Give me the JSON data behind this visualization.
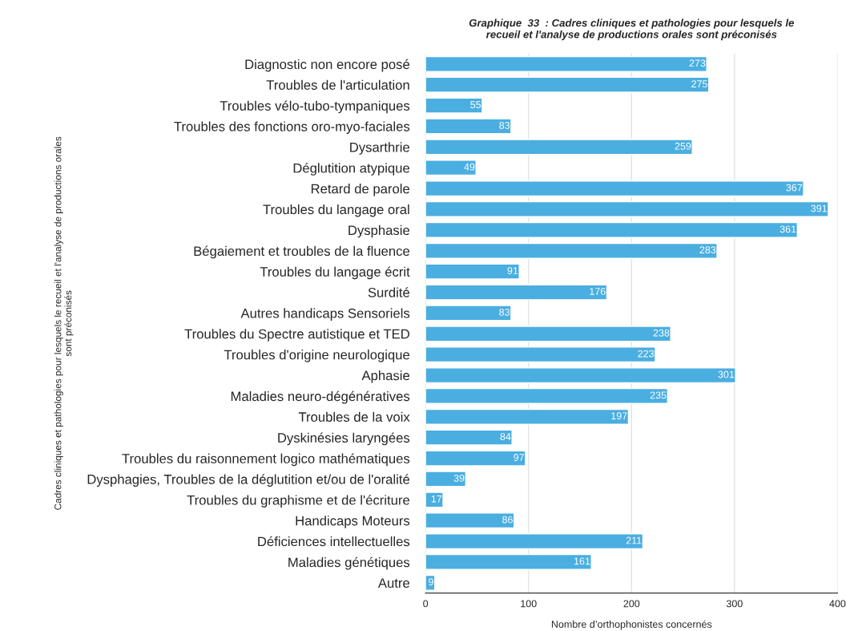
{
  "chart_data": {
    "type": "bar",
    "orientation": "horizontal",
    "title": "Graphique  33  : Cadres cliniques et pathologies pour lesquels le\nrecueil et l'analyse de productions orales sont préconisés",
    "xlabel": "Nombre d’orthophonistes concernés",
    "ylabel": "Cadres cliniques et pathologies pour lesquels le recueil et l'analyse de productions orales\nsont préconisés",
    "categories": [
      "Diagnostic non encore posé",
      "Troubles de l'articulation",
      "Troubles vélo-tubo-tympaniques",
      "Troubles des fonctions oro-myo-faciales",
      "Dysarthrie",
      "Déglutition atypique",
      "Retard de parole",
      "Troubles du langage oral",
      "Dysphasie",
      "Bégaiement et troubles de la fluence",
      "Troubles du langage écrit",
      "Surdité",
      "Autres handicaps Sensoriels",
      "Troubles du Spectre autistique et TED",
      "Troubles d'origine neurologique",
      "Aphasie",
      "Maladies neuro-dégénératives",
      "Troubles de la voix",
      "Dyskinésies laryngées",
      "Troubles du raisonnement logico mathématiques",
      "Dysphagies, Troubles de la déglutition et/ou de l'oralité",
      "Troubles du graphisme et de l'écriture",
      "Handicaps Moteurs",
      "Déficiences intellectuelles",
      "Maladies génétiques",
      "Autre"
    ],
    "values": [
      273,
      275,
      55,
      83,
      259,
      49,
      367,
      391,
      361,
      283,
      91,
      176,
      83,
      238,
      223,
      301,
      235,
      197,
      84,
      97,
      39,
      17,
      86,
      211,
      161,
      9
    ],
    "color": "#4aaee0",
    "xlim": [
      0,
      400
    ],
    "xticks": [
      0,
      100,
      200,
      300,
      400
    ],
    "grid": "x",
    "data_labels": true
  }
}
